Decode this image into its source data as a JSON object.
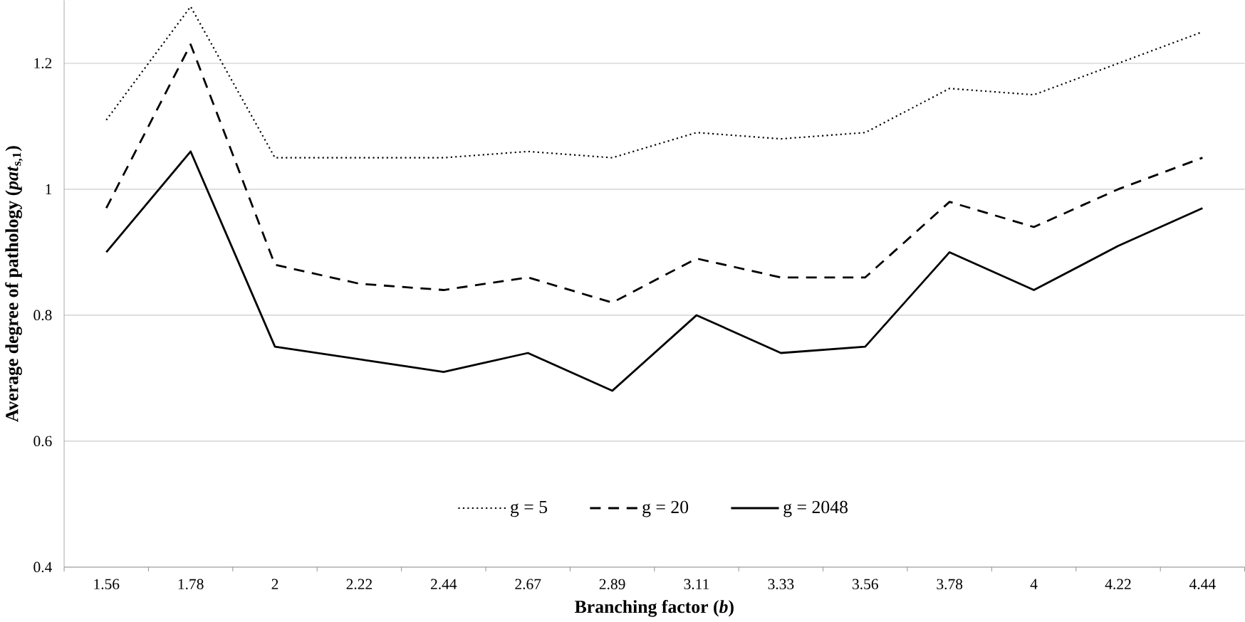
{
  "chart_data": {
    "type": "line",
    "xlabel": "Branching factor (*b*)",
    "ylabel": "Average degree of pathology (*pat*$_{s,1}$)",
    "categories": [
      "1.56",
      "1.78",
      "2",
      "2.22",
      "2.44",
      "2.67",
      "2.89",
      "3.11",
      "3.33",
      "3.56",
      "3.78",
      "4",
      "4.22",
      "4.44"
    ],
    "series": [
      {
        "name": "g = 5",
        "color": "#000000",
        "line_style": "dotted",
        "values": [
          1.11,
          1.29,
          1.05,
          1.05,
          1.05,
          1.06,
          1.05,
          1.09,
          1.08,
          1.09,
          1.16,
          1.15,
          1.2,
          1.25
        ]
      },
      {
        "name": "g = 20",
        "color": "#000000",
        "line_style": "dashed",
        "values": [
          0.97,
          1.23,
          0.88,
          0.85,
          0.84,
          0.86,
          0.82,
          0.89,
          0.86,
          0.86,
          0.98,
          0.94,
          1.0,
          1.05
        ]
      },
      {
        "name": "g = 2048",
        "color": "#000000",
        "line_style": "solid",
        "values": [
          0.9,
          1.06,
          0.75,
          0.73,
          0.71,
          0.74,
          0.68,
          0.8,
          0.74,
          0.75,
          0.9,
          0.84,
          0.91,
          0.97
        ]
      }
    ],
    "ylim": [
      0.4,
      1.3
    ],
    "yticks": [
      0.4,
      0.6,
      0.8,
      1,
      1.2
    ],
    "grid": "y",
    "legend": "bottom",
    "marker": "none"
  }
}
